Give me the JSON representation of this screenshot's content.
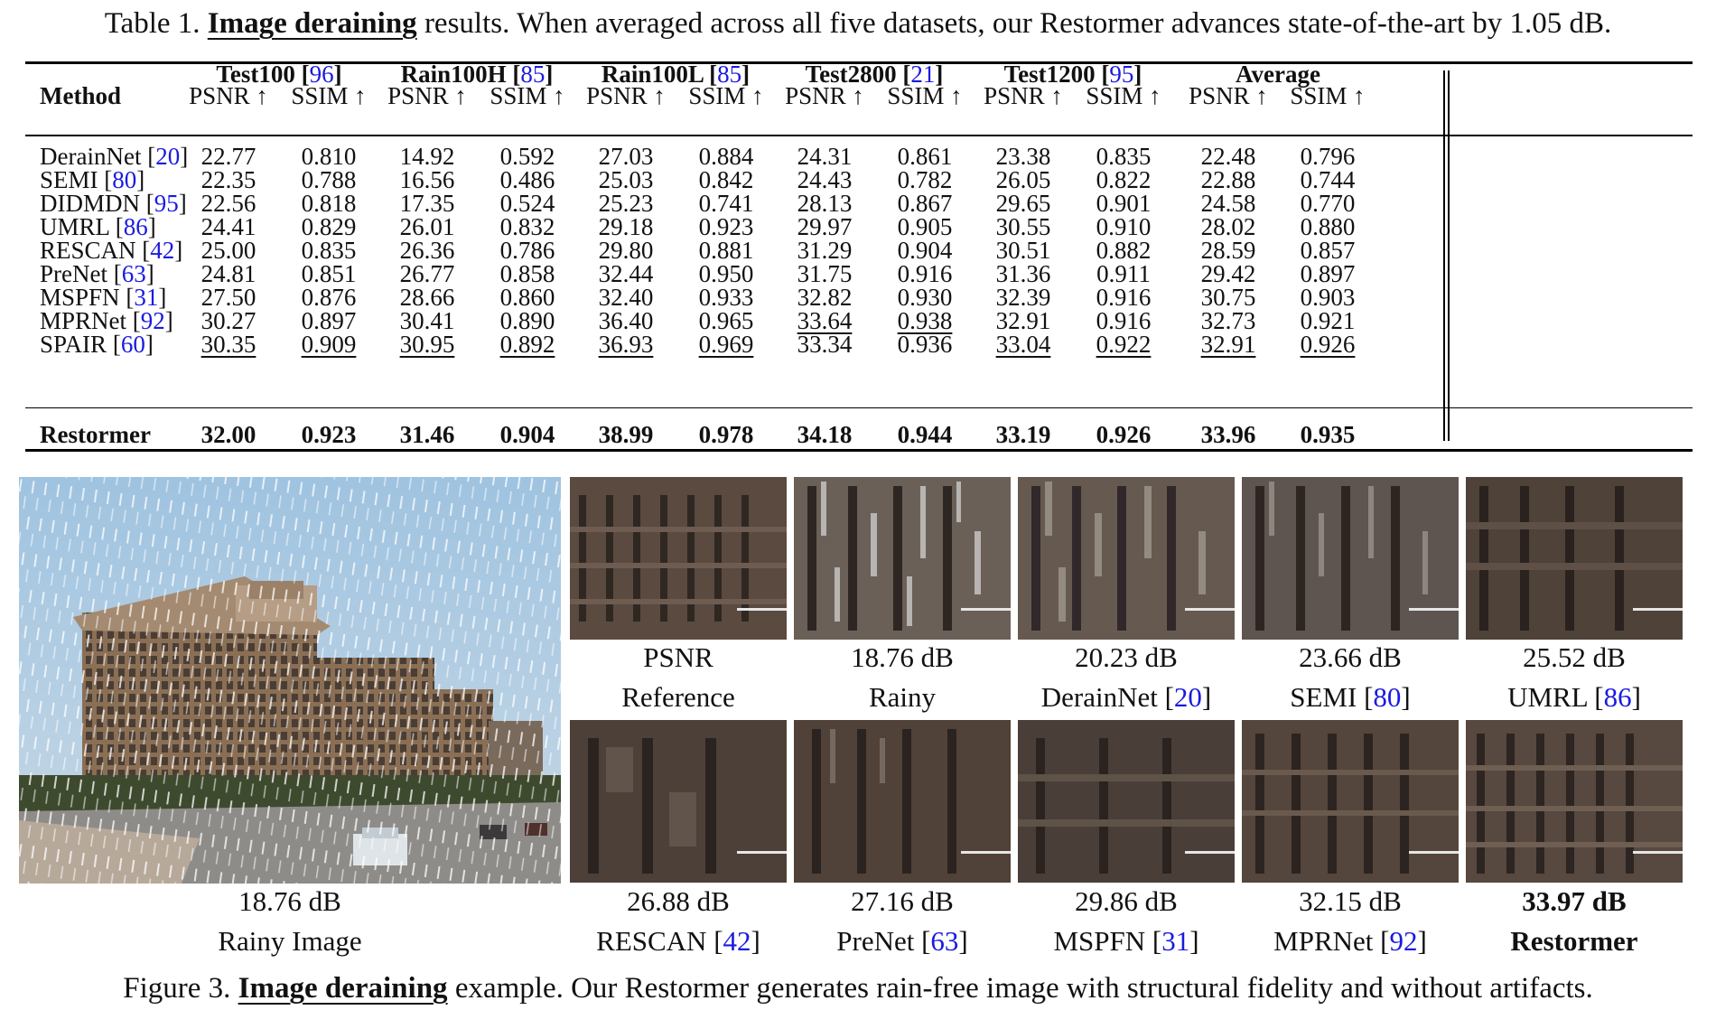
{
  "table_caption": {
    "prefix": "Table 1.",
    "lead": "Image deraining",
    "text": "results. When averaged across all five datasets, our Restormer advances state-of-the-art by 1.05 dB."
  },
  "table": {
    "method_header": "Method",
    "datasets": [
      {
        "name": "Test100",
        "ref": "96"
      },
      {
        "name": "Rain100H",
        "ref": "85"
      },
      {
        "name": "Rain100L",
        "ref": "85"
      },
      {
        "name": "Test2800",
        "ref": "21"
      },
      {
        "name": "Test1200",
        "ref": "95"
      },
      {
        "name": "Average",
        "ref": ""
      }
    ],
    "metric_psnr": "PSNR ↑",
    "metric_ssim": "SSIM ↑",
    "rows": [
      {
        "method": "DerainNet",
        "ref": "20",
        "values": [
          "22.77",
          "0.810",
          "14.92",
          "0.592",
          "27.03",
          "0.884",
          "24.31",
          "0.861",
          "23.38",
          "0.835",
          "22.48",
          "0.796"
        ],
        "underline": []
      },
      {
        "method": "SEMI",
        "ref": "80",
        "values": [
          "22.35",
          "0.788",
          "16.56",
          "0.486",
          "25.03",
          "0.842",
          "24.43",
          "0.782",
          "26.05",
          "0.822",
          "22.88",
          "0.744"
        ],
        "underline": []
      },
      {
        "method": "DIDMDN",
        "ref": "95",
        "values": [
          "22.56",
          "0.818",
          "17.35",
          "0.524",
          "25.23",
          "0.741",
          "28.13",
          "0.867",
          "29.65",
          "0.901",
          "24.58",
          "0.770"
        ],
        "underline": []
      },
      {
        "method": "UMRL",
        "ref": "86",
        "values": [
          "24.41",
          "0.829",
          "26.01",
          "0.832",
          "29.18",
          "0.923",
          "29.97",
          "0.905",
          "30.55",
          "0.910",
          "28.02",
          "0.880"
        ],
        "underline": []
      },
      {
        "method": "RESCAN",
        "ref": "42",
        "values": [
          "25.00",
          "0.835",
          "26.36",
          "0.786",
          "29.80",
          "0.881",
          "31.29",
          "0.904",
          "30.51",
          "0.882",
          "28.59",
          "0.857"
        ],
        "underline": []
      },
      {
        "method": "PreNet",
        "ref": "63",
        "values": [
          "24.81",
          "0.851",
          "26.77",
          "0.858",
          "32.44",
          "0.950",
          "31.75",
          "0.916",
          "31.36",
          "0.911",
          "29.42",
          "0.897"
        ],
        "underline": []
      },
      {
        "method": "MSPFN",
        "ref": "31",
        "values": [
          "27.50",
          "0.876",
          "28.66",
          "0.860",
          "32.40",
          "0.933",
          "32.82",
          "0.930",
          "32.39",
          "0.916",
          "30.75",
          "0.903"
        ],
        "underline": []
      },
      {
        "method": "MPRNet",
        "ref": "92",
        "values": [
          "30.27",
          "0.897",
          "30.41",
          "0.890",
          "36.40",
          "0.965",
          "33.64",
          "0.938",
          "32.91",
          "0.916",
          "32.73",
          "0.921"
        ],
        "underline": [
          6,
          7
        ]
      },
      {
        "method": "SPAIR",
        "ref": "60",
        "values": [
          "30.35",
          "0.909",
          "30.95",
          "0.892",
          "36.93",
          "0.969",
          "33.34",
          "0.936",
          "33.04",
          "0.922",
          "32.91",
          "0.926"
        ],
        "underline": [
          0,
          1,
          2,
          3,
          4,
          5,
          8,
          9,
          10,
          11
        ]
      }
    ],
    "best_row": {
      "method": "Restormer",
      "values": [
        "32.00",
        "0.923",
        "31.46",
        "0.904",
        "38.99",
        "0.978",
        "34.18",
        "0.944",
        "33.19",
        "0.926",
        "33.96",
        "0.935"
      ]
    }
  },
  "figure": {
    "big_image": {
      "score": "18.76 dB",
      "label": "Rainy Image"
    },
    "top_row": [
      {
        "score": "PSNR",
        "label": "Reference",
        "ref": ""
      },
      {
        "score": "18.76 dB",
        "label": "Rainy",
        "ref": ""
      },
      {
        "score": "20.23 dB",
        "label": "DerainNet",
        "ref": "20"
      },
      {
        "score": "23.66 dB",
        "label": "SEMI",
        "ref": "80"
      },
      {
        "score": "25.52 dB",
        "label": "UMRL",
        "ref": "86"
      }
    ],
    "bottom_row": [
      {
        "score": "26.88 dB",
        "label": "RESCAN",
        "ref": "42"
      },
      {
        "score": "27.16 dB",
        "label": "PreNet",
        "ref": "63"
      },
      {
        "score": "29.86 dB",
        "label": "MSPFN",
        "ref": "31"
      },
      {
        "score": "32.15 dB",
        "label": "MPRNet",
        "ref": "92"
      },
      {
        "score": "33.97 dB",
        "label": "Restormer",
        "ref": ""
      }
    ]
  },
  "figure_caption": {
    "prefix": "Figure 3.",
    "lead": "Image deraining",
    "text": "example. Our Restormer generates rain-free image with structural fidelity and without artifacts."
  }
}
